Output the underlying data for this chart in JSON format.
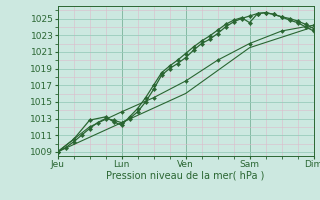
{
  "xlabel": "Pression niveau de la mer( hPa )",
  "bg_color": "#cce8e0",
  "major_grid_color": "#99ccbb",
  "minor_grid_color": "#ddbbcc",
  "line_color": "#2a6632",
  "ylim": [
    1008.5,
    1026.5
  ],
  "xlim": [
    0,
    96
  ],
  "yticks": [
    1009,
    1011,
    1013,
    1015,
    1017,
    1019,
    1021,
    1023,
    1025
  ],
  "xtick_positions": [
    0,
    24,
    48,
    72,
    96
  ],
  "xtick_labels": [
    "Jeu",
    "Lun",
    "Ven",
    "Sam",
    "Dim"
  ],
  "series1": [
    [
      0,
      1009.0
    ],
    [
      3,
      1009.5
    ],
    [
      6,
      1010.2
    ],
    [
      9,
      1011.0
    ],
    [
      12,
      1011.8
    ],
    [
      15,
      1012.5
    ],
    [
      18,
      1013.0
    ],
    [
      21,
      1012.8
    ],
    [
      24,
      1012.5
    ],
    [
      27,
      1013.0
    ],
    [
      30,
      1013.8
    ],
    [
      33,
      1015.0
    ],
    [
      36,
      1016.5
    ],
    [
      39,
      1018.2
    ],
    [
      42,
      1019.0
    ],
    [
      45,
      1019.6
    ],
    [
      48,
      1020.3
    ],
    [
      51,
      1021.2
    ],
    [
      54,
      1022.0
    ],
    [
      57,
      1022.5
    ],
    [
      60,
      1023.2
    ],
    [
      63,
      1024.0
    ],
    [
      66,
      1024.6
    ],
    [
      69,
      1025.0
    ],
    [
      72,
      1025.3
    ],
    [
      75,
      1025.6
    ],
    [
      78,
      1025.7
    ],
    [
      81,
      1025.5
    ],
    [
      84,
      1025.2
    ],
    [
      87,
      1025.0
    ],
    [
      90,
      1024.7
    ],
    [
      93,
      1024.3
    ],
    [
      96,
      1023.8
    ]
  ],
  "series2": [
    [
      0,
      1009.0
    ],
    [
      6,
      1010.5
    ],
    [
      12,
      1012.8
    ],
    [
      18,
      1013.2
    ],
    [
      21,
      1012.6
    ],
    [
      24,
      1012.2
    ],
    [
      27,
      1013.2
    ],
    [
      30,
      1014.2
    ],
    [
      33,
      1015.5
    ],
    [
      36,
      1017.0
    ],
    [
      39,
      1018.5
    ],
    [
      42,
      1019.3
    ],
    [
      45,
      1020.0
    ],
    [
      48,
      1020.8
    ],
    [
      51,
      1021.6
    ],
    [
      54,
      1022.3
    ],
    [
      57,
      1022.9
    ],
    [
      60,
      1023.6
    ],
    [
      63,
      1024.3
    ],
    [
      66,
      1024.8
    ],
    [
      69,
      1025.1
    ],
    [
      72,
      1024.5
    ],
    [
      75,
      1025.6
    ],
    [
      78,
      1025.7
    ],
    [
      81,
      1025.5
    ],
    [
      84,
      1025.2
    ],
    [
      87,
      1024.8
    ],
    [
      90,
      1024.5
    ],
    [
      93,
      1024.0
    ],
    [
      96,
      1023.5
    ]
  ],
  "series3": [
    [
      0,
      1009.0
    ],
    [
      12,
      1012.0
    ],
    [
      24,
      1013.8
    ],
    [
      36,
      1015.5
    ],
    [
      48,
      1017.5
    ],
    [
      60,
      1020.0
    ],
    [
      72,
      1022.0
    ],
    [
      84,
      1023.5
    ],
    [
      96,
      1024.2
    ]
  ],
  "series4": [
    [
      0,
      1009.0
    ],
    [
      24,
      1012.5
    ],
    [
      48,
      1016.0
    ],
    [
      72,
      1021.5
    ],
    [
      96,
      1024.0
    ]
  ]
}
